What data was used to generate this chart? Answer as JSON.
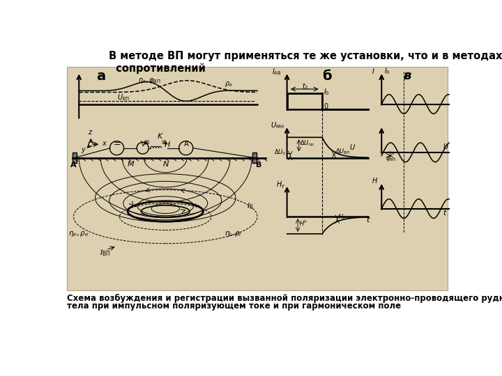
{
  "title": "В методе ВП могут применяться те же установки, что и в методах\n  сопротивлений",
  "caption_line1": "Схема возбуждения и регистрации вызванной поляризации электронно-проводящего рудного",
  "caption_line2": "тела при импульсном поляризующем токе и при гармоническом поле",
  "bg_color": "#ddd0b0",
  "outer_bg": "#ffffff",
  "label_a": "а",
  "label_b": "б",
  "label_v": "в"
}
